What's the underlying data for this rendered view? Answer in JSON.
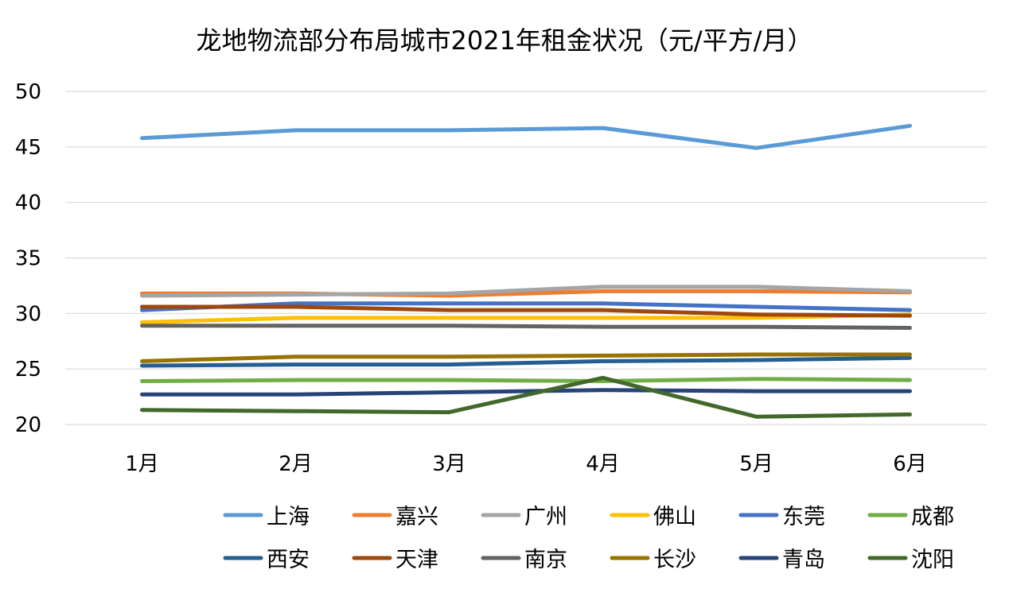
{
  "chart_data": {
    "type": "line",
    "title": "龙地物流部分布局城市2021年租金状况（元/平方/月）",
    "xlabel": "",
    "ylabel": "",
    "categories": [
      "1月",
      "2月",
      "3月",
      "4月",
      "5月",
      "6月"
    ],
    "ylim": [
      20,
      50
    ],
    "yticks": [
      20,
      25,
      30,
      35,
      40,
      45,
      50
    ],
    "grid": true,
    "legend_position": "bottom",
    "series": [
      {
        "name": "上海",
        "color": "#5B9BD5",
        "values": [
          45.8,
          46.5,
          46.5,
          46.7,
          44.9,
          46.9
        ]
      },
      {
        "name": "嘉兴",
        "color": "#ED7D31",
        "values": [
          31.8,
          31.8,
          31.6,
          32.0,
          32.0,
          31.9
        ]
      },
      {
        "name": "广州",
        "color": "#A5A5A5",
        "values": [
          31.6,
          31.7,
          31.8,
          32.4,
          32.4,
          32.0
        ]
      },
      {
        "name": "佛山",
        "color": "#FFC000",
        "values": [
          29.2,
          29.6,
          29.6,
          29.6,
          29.6,
          29.9
        ]
      },
      {
        "name": "东莞",
        "color": "#4472C4",
        "values": [
          30.3,
          30.9,
          30.9,
          30.9,
          30.6,
          30.3
        ]
      },
      {
        "name": "成都",
        "color": "#70AD47",
        "values": [
          23.9,
          24.0,
          24.0,
          23.9,
          24.1,
          24.0
        ]
      },
      {
        "name": "西安",
        "color": "#255E91",
        "values": [
          25.3,
          25.4,
          25.4,
          25.7,
          25.8,
          26.0
        ]
      },
      {
        "name": "天津",
        "color": "#9E480E",
        "values": [
          30.6,
          30.6,
          30.3,
          30.3,
          29.9,
          29.8
        ]
      },
      {
        "name": "南京",
        "color": "#636363",
        "values": [
          28.9,
          28.9,
          28.9,
          28.8,
          28.8,
          28.7
        ]
      },
      {
        "name": "长沙",
        "color": "#997300",
        "values": [
          25.7,
          26.1,
          26.1,
          26.2,
          26.3,
          26.3
        ]
      },
      {
        "name": "青岛",
        "color": "#264478",
        "values": [
          22.7,
          22.7,
          22.9,
          23.1,
          23.0,
          23.0
        ]
      },
      {
        "name": "沈阳",
        "color": "#43682B",
        "values": [
          21.3,
          21.2,
          21.1,
          24.2,
          20.7,
          20.9
        ]
      }
    ]
  }
}
